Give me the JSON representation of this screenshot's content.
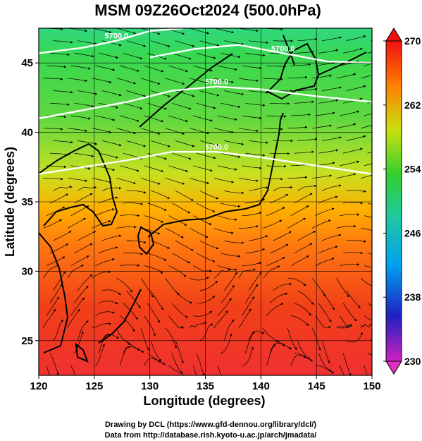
{
  "chart_data": {
    "type": "heatmap",
    "title": "MSM 09Z26Oct2024 (500.0hPa)",
    "xlabel": "Longitude (degrees)",
    "ylabel": "Latitude  (degrees)",
    "xlim": [
      120,
      150
    ],
    "ylim": [
      22.5,
      47.5
    ],
    "x_ticks": [
      120,
      125,
      130,
      135,
      140,
      145,
      150
    ],
    "y_ticks": [
      25,
      30,
      35,
      40,
      45
    ],
    "grid": true,
    "colorbar": {
      "min": 230,
      "max": 270,
      "ticks": [
        230,
        238,
        246,
        254,
        262,
        270
      ],
      "colors": [
        "#d020c0",
        "#2020c0",
        "#00a0f0",
        "#20c8a0",
        "#30d030",
        "#c8e010",
        "#ff8000",
        "#f01010"
      ]
    },
    "temperature_field": {
      "lat": [
        22.5,
        25,
        27.5,
        30,
        32.5,
        35,
        37.5,
        40,
        42.5,
        45,
        47.5
      ],
      "values_K": [
        268.5,
        268,
        267,
        266,
        265,
        262,
        259,
        257,
        255.5,
        254,
        252
      ]
    },
    "contours": [
      {
        "label": "5700.0",
        "points": [
          [
            120,
            37
          ],
          [
            124,
            37.5
          ],
          [
            128,
            38
          ],
          [
            132,
            38.6
          ],
          [
            136,
            38.6
          ],
          [
            140,
            38.2
          ],
          [
            145,
            37.6
          ],
          [
            150,
            37
          ]
        ]
      },
      {
        "label": "5700.0",
        "points": [
          [
            120,
            41
          ],
          [
            124,
            41.6
          ],
          [
            128,
            42.2
          ],
          [
            132,
            43
          ],
          [
            136,
            43.3
          ],
          [
            140,
            43.1
          ],
          [
            145,
            42.6
          ],
          [
            150,
            42.2
          ]
        ]
      },
      {
        "label": "5700.0",
        "points": [
          [
            120,
            45.7
          ],
          [
            124,
            46.1
          ],
          [
            127,
            46.6
          ],
          [
            130,
            47.3
          ],
          [
            133,
            47.5
          ]
        ]
      },
      {
        "label": "5700.0",
        "points": [
          [
            130,
            45.4
          ],
          [
            134,
            46
          ],
          [
            138,
            46.3
          ],
          [
            142,
            45.7
          ],
          [
            146,
            45.1
          ],
          [
            150,
            45
          ]
        ]
      }
    ],
    "contour_label_text": "5700.0"
  },
  "credits": {
    "line1": "Drawing by DCL (https://www.gfd-dennou.org/library/dcl/)",
    "line2": "Data from http://database.rish.kyoto-u.ac.jp/arch/jmadata/"
  }
}
